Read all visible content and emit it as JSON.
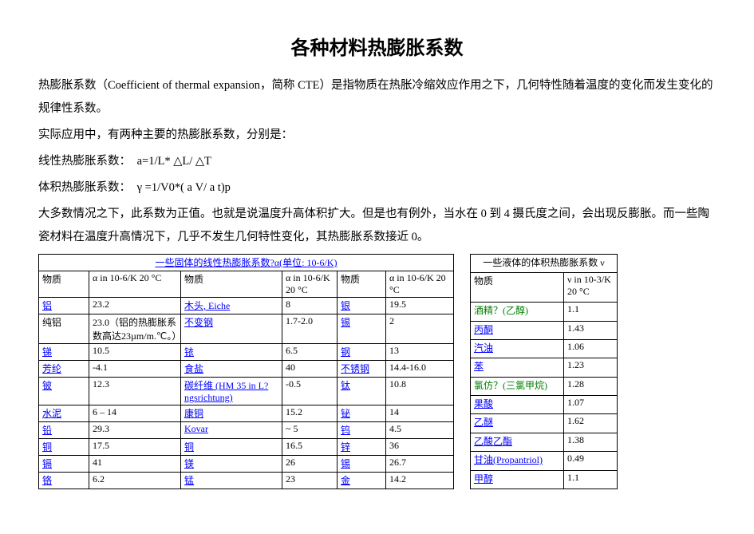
{
  "title": "各种材料热膨胀系数",
  "paragraphs": {
    "p1": "热膨胀系数（Coefficient of thermal expansion，简称 CTE）是指物质在热胀冷缩效应作用之下，几何特性随着温度的变化而发生变化的规律性系数。",
    "p2": "实际应用中，有两种主要的热膨胀系数，分别是：",
    "p3_label": "线性热膨胀系数：",
    "p3_formula": "a=1/L* △L/ △T",
    "p4_label": "体积热膨胀系数：",
    "p4_formula": "γ =1/V0*( а V/ а t)p",
    "p5": "大多数情况之下，此系数为正值。也就是说温度升高体积扩大。但是也有例外，当水在 0 到 4 摄氏度之间，会出现反膨胀。而一些陶瓷材料在温度升高情况下，几乎不发生几何特性变化，其热膨胀系数接近 0。"
  },
  "solid": {
    "header": "一些固体的线性热膨胀系数?α(单位: 10-6/K)",
    "col1": "物质",
    "col2": "α in 10-6/K 20 °C",
    "col3": "物质",
    "col4": "α in 10-6/K 20 °C",
    "col5": "物质",
    "col6": "α in 10-6/K 20 °C",
    "rows": [
      {
        "m1": "铝",
        "l1": true,
        "v1": "23.2",
        "m2": "木头, Eiche",
        "l2": true,
        "v2": "8",
        "m3": "银",
        "l3": true,
        "v3": "19.5"
      },
      {
        "m1": "纯铝",
        "l1": false,
        "v1": "23.0（铝的热膨胀系数高达23µm/m.℃。）",
        "m2": "不变钢",
        "l2": true,
        "v2": "1.7-2.0",
        "m3": "锡",
        "l3": true,
        "v3": "2"
      },
      {
        "m1": "锑",
        "l1": true,
        "v1": "10.5",
        "m2": "铱",
        "l2": true,
        "v2": "6.5",
        "m3": "钢",
        "l3": true,
        "v3": "13"
      },
      {
        "m1": "芳纶",
        "l1": true,
        "v1": "-4.1",
        "m2": "食盐",
        "l2": true,
        "v2": "40",
        "m3": "不锈钢",
        "l3": true,
        "v3": "14.4-16.0"
      },
      {
        "m1": "铍",
        "l1": true,
        "v1": "12.3",
        "m2": "碳纤维 (HM 35 in L?ngsrichtung)",
        "l2": true,
        "v2": "-0.5",
        "m3": "钛",
        "l3": true,
        "v3": "10.8"
      },
      {
        "m1": "水泥",
        "l1": true,
        "v1": "6 – 14",
        "m2": "康铜",
        "l2": true,
        "v2": "15.2",
        "m3": "铋",
        "l3": true,
        "v3": "14"
      },
      {
        "m1": "铅",
        "l1": true,
        "v1": "29.3",
        "m2": "Kovar",
        "l2": true,
        "v2": "~ 5",
        "m3": "钨",
        "l3": true,
        "v3": "4.5"
      },
      {
        "m1": "铜",
        "l1": true,
        "v1": "17.5",
        "m2": "铜",
        "l2": true,
        "v2": "16.5",
        "m3": "锌",
        "l3": true,
        "v3": "36"
      },
      {
        "m1": "镉",
        "l1": true,
        "v1": "41",
        "m2": "镁",
        "l2": true,
        "v2": "26",
        "m3": "锡",
        "l3": true,
        "v3": "26.7"
      },
      {
        "m1": "铬",
        "l1": true,
        "v1": "6.2",
        "m2": "锰",
        "l2": true,
        "v2": "23",
        "m3": "金",
        "l3": true,
        "v3": "14.2"
      }
    ]
  },
  "liquid": {
    "header": "一些液体的体积热膨胀系数 ν",
    "col1": "物质",
    "col2": "ν in 10-3/K 20 °C",
    "rows": [
      {
        "m": "酒精？(乙醇)",
        "g": true,
        "v": "1.1"
      },
      {
        "m": "丙酮",
        "l": true,
        "v": "1.43"
      },
      {
        "m": "汽油",
        "l": true,
        "v": "1.06"
      },
      {
        "m": "苯",
        "l": true,
        "v": "1.23"
      },
      {
        "m": "氯仿？(三氯甲烷)",
        "g": true,
        "v": "1.28"
      },
      {
        "m": "果酸",
        "l": true,
        "v": "1.07"
      },
      {
        "m": "乙醚",
        "l": true,
        "v": "1.62"
      },
      {
        "m": "乙酸乙酯",
        "l": true,
        "v": "1.38"
      },
      {
        "m": "甘油(Propantriol)",
        "l": true,
        "v": "0.49"
      },
      {
        "m": "甲醇",
        "l": true,
        "v": "1.1"
      }
    ]
  }
}
